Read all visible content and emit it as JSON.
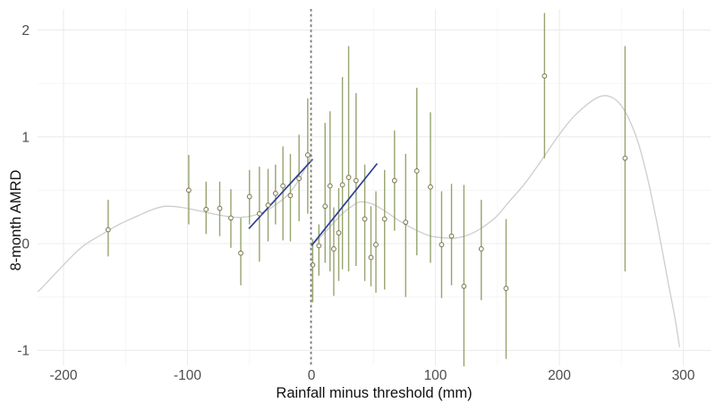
{
  "chart_data": {
    "type": "scatter",
    "title": "",
    "xlabel": "Rainfall minus threshold (mm)",
    "ylabel": "8-month AMRD",
    "legend": "none",
    "grid": "on",
    "xlim": [
      -222,
      320
    ],
    "ylim": [
      -1.16,
      2.22
    ],
    "x_ticks": [
      {
        "v": -200,
        "label": "-200"
      },
      {
        "v": -100,
        "label": "-100"
      },
      {
        "v": 0,
        "label": "0"
      },
      {
        "v": 100,
        "label": "100"
      },
      {
        "v": 200,
        "label": "200"
      },
      {
        "v": 300,
        "label": "300"
      }
    ],
    "y_ticks": [
      {
        "v": 2,
        "label": "2"
      },
      {
        "v": 1,
        "label": "1"
      },
      {
        "v": 0,
        "label": "0"
      },
      {
        "v": -1,
        "label": "-1"
      }
    ],
    "x_minor": [
      -150,
      -50,
      50,
      150,
      250
    ],
    "y_minor": [
      1.5,
      0.5,
      -0.5
    ],
    "vline": {
      "x": 0,
      "style": "dashed"
    },
    "points_with_ci": [
      {
        "x": -164,
        "y": 0.13,
        "lo": -0.12,
        "hi": 0.41
      },
      {
        "x": -99,
        "y": 0.5,
        "lo": 0.18,
        "hi": 0.83
      },
      {
        "x": -85,
        "y": 0.32,
        "lo": 0.09,
        "hi": 0.58
      },
      {
        "x": -74,
        "y": 0.33,
        "lo": 0.07,
        "hi": 0.58
      },
      {
        "x": -65,
        "y": 0.24,
        "lo": -0.04,
        "hi": 0.51
      },
      {
        "x": -57,
        "y": -0.09,
        "lo": -0.39,
        "hi": 0.24
      },
      {
        "x": -50,
        "y": 0.44,
        "lo": 0.18,
        "hi": 0.69
      },
      {
        "x": -42,
        "y": 0.28,
        "lo": -0.17,
        "hi": 0.72
      },
      {
        "x": -35,
        "y": 0.36,
        "lo": 0.02,
        "hi": 0.7
      },
      {
        "x": -29,
        "y": 0.47,
        "lo": 0.18,
        "hi": 0.74
      },
      {
        "x": -23,
        "y": 0.54,
        "lo": 0.03,
        "hi": 0.91
      },
      {
        "x": -17,
        "y": 0.45,
        "lo": 0.02,
        "hi": 0.84
      },
      {
        "x": -10,
        "y": 0.61,
        "lo": 0.21,
        "hi": 1.02
      },
      {
        "x": -3,
        "y": 0.83,
        "lo": 0.28,
        "hi": 1.36
      },
      {
        "x": 1,
        "y": -0.2,
        "lo": -0.55,
        "hi": 0.04
      },
      {
        "x": 6,
        "y": -0.02,
        "lo": -0.3,
        "hi": 0.18
      },
      {
        "x": 11,
        "y": 0.35,
        "lo": -0.18,
        "hi": 1.13
      },
      {
        "x": 15,
        "y": 0.54,
        "lo": -0.26,
        "hi": 1.24
      },
      {
        "x": 18,
        "y": -0.05,
        "lo": -0.49,
        "hi": 0.34
      },
      {
        "x": 22,
        "y": 0.1,
        "lo": -0.35,
        "hi": 0.52
      },
      {
        "x": 25,
        "y": 0.55,
        "lo": -0.24,
        "hi": 1.56
      },
      {
        "x": 30,
        "y": 0.62,
        "lo": -0.26,
        "hi": 1.85
      },
      {
        "x": 36,
        "y": 0.59,
        "lo": -0.21,
        "hi": 1.41
      },
      {
        "x": 43,
        "y": 0.23,
        "lo": -0.35,
        "hi": 0.74
      },
      {
        "x": 48,
        "y": -0.13,
        "lo": -0.4,
        "hi": 0.35
      },
      {
        "x": 52,
        "y": -0.01,
        "lo": -0.46,
        "hi": 0.49
      },
      {
        "x": 59,
        "y": 0.23,
        "lo": -0.43,
        "hi": 0.69
      },
      {
        "x": 67,
        "y": 0.59,
        "lo": 0.12,
        "hi": 1.06
      },
      {
        "x": 76,
        "y": 0.2,
        "lo": -0.5,
        "hi": 0.84
      },
      {
        "x": 85,
        "y": 0.68,
        "lo": -0.11,
        "hi": 1.46
      },
      {
        "x": 96,
        "y": 0.53,
        "lo": -0.18,
        "hi": 1.23
      },
      {
        "x": 105,
        "y": -0.01,
        "lo": -0.51,
        "hi": 0.49
      },
      {
        "x": 113,
        "y": 0.07,
        "lo": -0.39,
        "hi": 0.56
      },
      {
        "x": 123,
        "y": -0.4,
        "lo": -1.15,
        "hi": 0.55
      },
      {
        "x": 137,
        "y": -0.05,
        "lo": -0.53,
        "hi": 0.41
      },
      {
        "x": 157,
        "y": -0.42,
        "lo": -1.08,
        "hi": 0.23
      },
      {
        "x": 188,
        "y": 1.57,
        "lo": 0.8,
        "hi": 2.16
      },
      {
        "x": 253,
        "y": 0.8,
        "lo": -0.26,
        "hi": 1.85
      }
    ],
    "fit_lines": [
      {
        "side": "left",
        "x1": -50.5,
        "y1": 0.14,
        "x2": 1,
        "y2": 0.79
      },
      {
        "side": "right",
        "x1": 0,
        "y1": -0.02,
        "x2": 53,
        "y2": 0.75
      }
    ],
    "smooth_left": [
      [
        -221,
        -0.45
      ],
      [
        -218,
        -0.42
      ],
      [
        -200,
        -0.2
      ],
      [
        -185,
        -0.03
      ],
      [
        -170,
        0.08
      ],
      [
        -155,
        0.18
      ],
      [
        -140,
        0.26
      ],
      [
        -128,
        0.32
      ],
      [
        -118,
        0.35
      ],
      [
        -105,
        0.34
      ],
      [
        -92,
        0.31
      ],
      [
        -80,
        0.28
      ],
      [
        -68,
        0.255
      ],
      [
        -58,
        0.245
      ],
      [
        -48,
        0.26
      ],
      [
        -38,
        0.3
      ],
      [
        -28,
        0.37
      ],
      [
        -18,
        0.47
      ],
      [
        -10,
        0.6
      ],
      [
        -4,
        0.73
      ],
      [
        0,
        0.84
      ]
    ],
    "smooth_right": [
      [
        0,
        -0.02
      ],
      [
        8,
        0.07
      ],
      [
        16,
        0.17
      ],
      [
        24,
        0.27
      ],
      [
        32,
        0.345
      ],
      [
        39,
        0.39
      ],
      [
        48,
        0.375
      ],
      [
        58,
        0.315
      ],
      [
        70,
        0.22
      ],
      [
        82,
        0.14
      ],
      [
        95,
        0.075
      ],
      [
        105,
        0.055
      ],
      [
        115,
        0.05
      ],
      [
        125,
        0.075
      ],
      [
        135,
        0.13
      ],
      [
        148,
        0.24
      ],
      [
        160,
        0.4
      ],
      [
        172,
        0.56
      ],
      [
        185,
        0.77
      ],
      [
        198,
        0.99
      ],
      [
        210,
        1.17
      ],
      [
        222,
        1.3
      ],
      [
        232,
        1.375
      ],
      [
        240,
        1.38
      ],
      [
        248,
        1.32
      ],
      [
        256,
        1.17
      ],
      [
        264,
        0.93
      ],
      [
        272,
        0.57
      ],
      [
        280,
        0.12
      ],
      [
        288,
        -0.38
      ],
      [
        293,
        -0.68
      ],
      [
        297,
        -0.97
      ]
    ],
    "colors": {
      "errorbar": "#8d9c63",
      "point_stroke": "#7d744e",
      "point_fill": "rgba(255,255,255,0.85)",
      "fit_line": "#2e3e96",
      "smooth": "#cdcdcd",
      "vline": "#7a7a7a",
      "grid_major": "#ececec",
      "grid_minor": "#f5f5f5",
      "axis_text": "#4d4d4d",
      "axis_title": "#111111",
      "background": "#ffffff"
    }
  },
  "axes": {
    "x_title": "Rainfall minus threshold (mm)",
    "y_title": "8-month AMRD"
  }
}
